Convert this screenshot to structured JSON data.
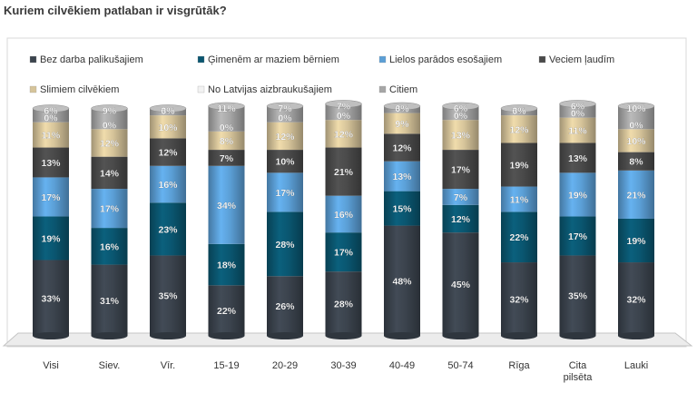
{
  "chart_data": {
    "type": "bar",
    "stacked": true,
    "title": "Kuriem cilvēkiem patlaban ir visgrūtāk?",
    "legend_position": "top",
    "categories": [
      "Visi",
      "Siev.",
      "Vīr.",
      "15-19",
      "20-29",
      "30-39",
      "40-49",
      "50-74",
      "Rīga",
      "Cita\npilsēta",
      "Lauki"
    ],
    "ylim": [
      0,
      100
    ],
    "grid": false,
    "series": [
      {
        "name": "Bez darba palikušajiem",
        "color": "#3b434d",
        "values": [
          33,
          31,
          35,
          22,
          26,
          28,
          48,
          45,
          32,
          35,
          32
        ]
      },
      {
        "name": "Ģimenēm ar maziem bērniem",
        "color": "#0a5670",
        "values": [
          19,
          16,
          23,
          18,
          28,
          17,
          15,
          12,
          22,
          17,
          19
        ]
      },
      {
        "name": "Lielos parādos esošajiem",
        "color": "#5b9fd6",
        "values": [
          17,
          17,
          16,
          34,
          17,
          16,
          13,
          7,
          11,
          19,
          21
        ]
      },
      {
        "name": "Veciem ļaudīm",
        "color": "#4a4a4a",
        "values": [
          13,
          14,
          12,
          7,
          10,
          21,
          12,
          17,
          19,
          13,
          8
        ]
      },
      {
        "name": "Slimiem cilvēkiem",
        "color": "#d6c49a",
        "values": [
          11,
          12,
          10,
          8,
          12,
          12,
          9,
          13,
          12,
          11,
          10
        ]
      },
      {
        "name": "No Latvijas aizbraukušajiem",
        "color": "#f2f2f2",
        "values": [
          0,
          0,
          0,
          0,
          0,
          0,
          0,
          0,
          0,
          0,
          0
        ]
      },
      {
        "name": "Citiem",
        "color": "#a6a6a6",
        "values": [
          6,
          9,
          3,
          11,
          7,
          7,
          3,
          6,
          3,
          6,
          10
        ]
      }
    ],
    "label_suffix": "%"
  }
}
